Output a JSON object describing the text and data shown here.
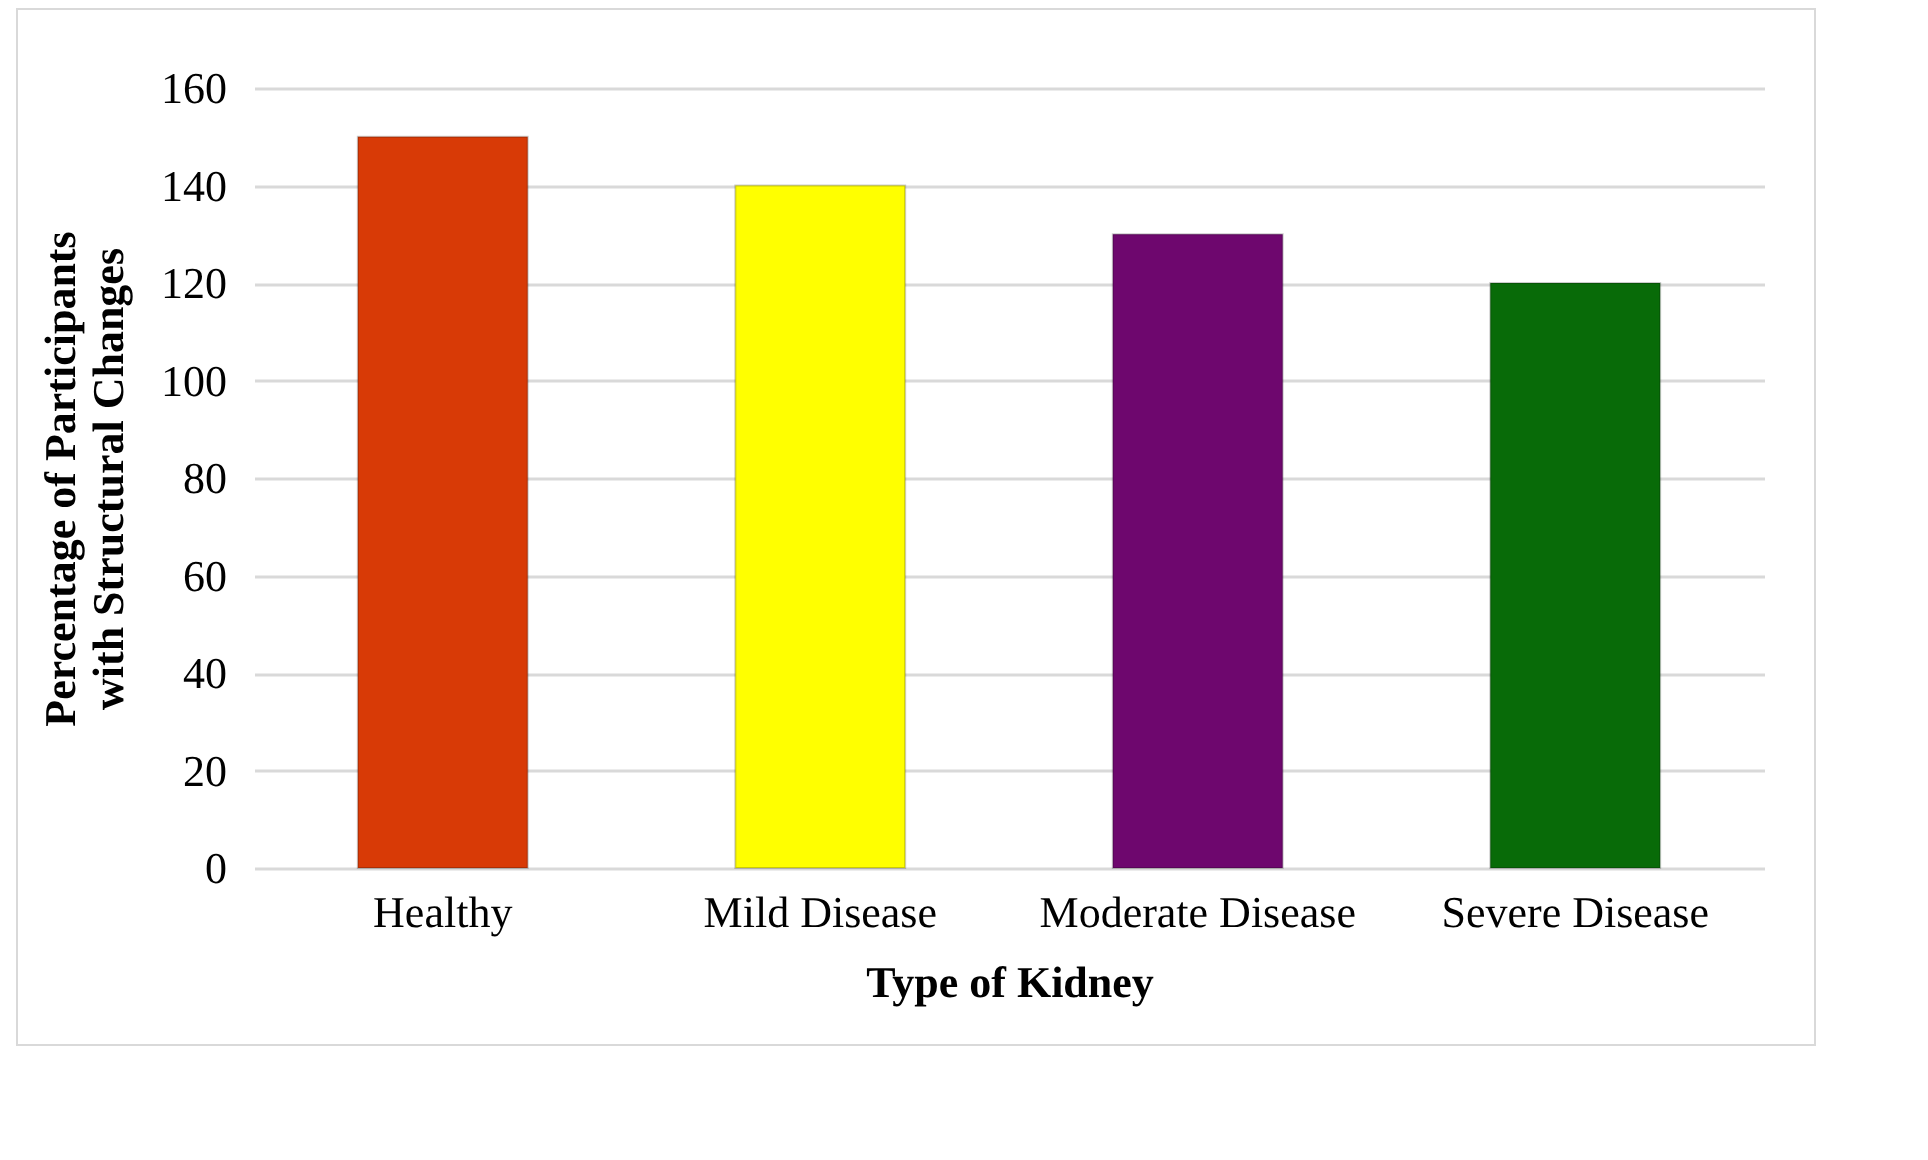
{
  "chart_data": {
    "type": "bar",
    "xlabel": "Type of Kidney",
    "ylabel": "Percentage of Participants with Structural Changes",
    "categories": [
      "Healthy",
      "Mild Disease",
      "Moderate Disease",
      "Severe Disease"
    ],
    "values": [
      150,
      140,
      130,
      120
    ],
    "colors": [
      "#d83a06",
      "#ffff00",
      "#6e076e",
      "#086b08"
    ],
    "ylim": [
      0,
      160
    ],
    "yticks": [
      0,
      20,
      40,
      60,
      80,
      100,
      120,
      140,
      160
    ],
    "grid": "y"
  }
}
